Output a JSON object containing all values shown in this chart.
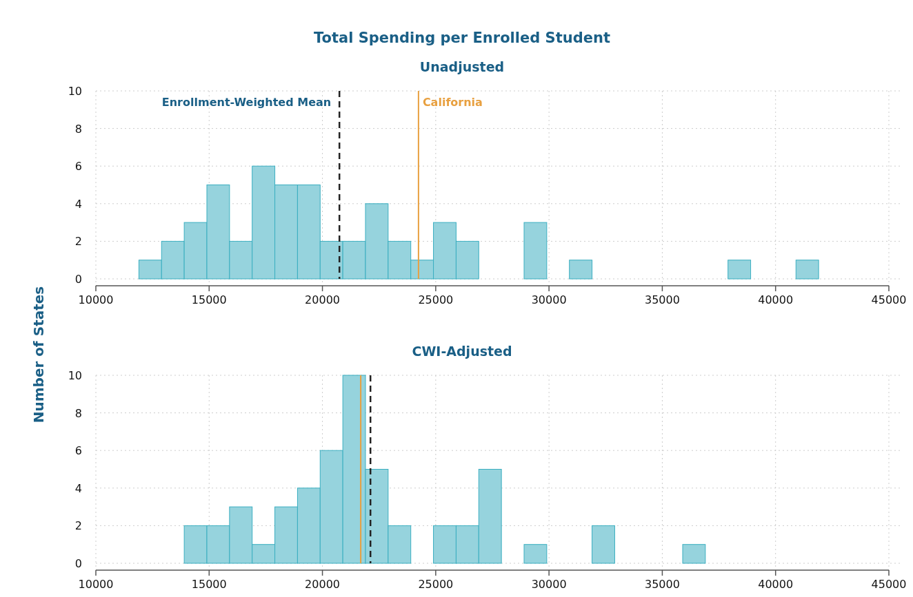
{
  "chart_data": [
    {
      "type": "histogram",
      "title": "Total Spending per Enrolled Student",
      "subtitle": "Unadjusted",
      "ylabel": "Number of States",
      "color": "#96d3dd",
      "bins": [
        11900,
        12900,
        13900,
        14900,
        15900,
        16900,
        17900,
        18900,
        19900,
        20900,
        21900,
        22900,
        23900,
        24900,
        25900,
        26900,
        27900,
        28900,
        29900,
        30900,
        31900,
        32900,
        33900,
        34900,
        35900,
        36900,
        37900,
        38900,
        39900,
        40900,
        41900
      ],
      "values": [
        1,
        2,
        3,
        5,
        2,
        6,
        5,
        5,
        2,
        2,
        4,
        2,
        1,
        3,
        2,
        0,
        0,
        3,
        0,
        1,
        0,
        0,
        0,
        0,
        0,
        0,
        1,
        0,
        0,
        1
      ],
      "xlim": [
        10000,
        45000
      ],
      "xticks": [
        10000,
        15000,
        20000,
        25000,
        30000,
        35000,
        40000,
        45000
      ],
      "ylim": [
        0,
        10
      ],
      "yticks": [
        0,
        2,
        4,
        6,
        8,
        10
      ],
      "grid": true,
      "ref_lines": [
        {
          "axis": "x",
          "value": 20750,
          "label": "Enrollment-Weighted Mean",
          "color": "#222222",
          "line_style": "dashed"
        },
        {
          "axis": "x",
          "value": 24240,
          "label": "California",
          "color": "#e8a040",
          "line_style": "solid"
        }
      ]
    },
    {
      "type": "histogram",
      "subtitle": "CWI-Adjusted",
      "color": "#96d3dd",
      "bins": [
        13900,
        14900,
        15900,
        16900,
        17900,
        18900,
        19900,
        20900,
        21900,
        22900,
        23900,
        24900,
        25900,
        26900,
        27900,
        28900,
        29900,
        30900,
        31900,
        32900,
        33900,
        34900,
        35900,
        36900
      ],
      "values": [
        2,
        2,
        3,
        1,
        3,
        4,
        6,
        10,
        5,
        2,
        0,
        2,
        2,
        5,
        0,
        1,
        0,
        0,
        2,
        0,
        0,
        0,
        1
      ],
      "xlim": [
        10000,
        45000
      ],
      "xticks": [
        10000,
        15000,
        20000,
        25000,
        30000,
        35000,
        40000,
        45000
      ],
      "ylim": [
        0,
        10
      ],
      "yticks": [
        0,
        2,
        4,
        6,
        8,
        10
      ],
      "grid": true,
      "ref_lines": [
        {
          "axis": "x",
          "value": 22120,
          "color": "#222222",
          "line_style": "dashed"
        },
        {
          "axis": "x",
          "value": 21690,
          "color": "#e8a040",
          "line_style": "solid"
        }
      ]
    }
  ]
}
